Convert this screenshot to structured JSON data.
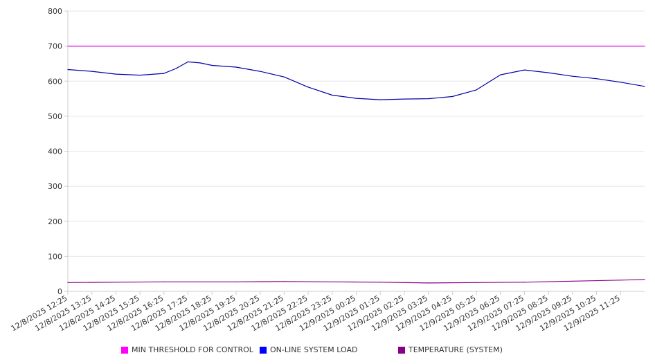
{
  "chart_data": {
    "type": "line",
    "title": "",
    "xlabel": "",
    "ylabel": "",
    "ylim": [
      0,
      800
    ],
    "yticks": [
      0,
      100,
      200,
      300,
      400,
      500,
      600,
      700,
      800
    ],
    "grid": true,
    "legend_position": "bottom",
    "x_start": "12/8/2025 12:25",
    "x_end": "12/9/2025 12:25",
    "x_tick_labels": [
      "12/8/2025 12:25",
      "12/8/2025 13:25",
      "12/8/2025 14:25",
      "12/8/2025 15:25",
      "12/8/2025 16:25",
      "12/8/2025 17:25",
      "12/8/2025 18:25",
      "12/8/2025 19:25",
      "12/8/2025 20:25",
      "12/8/2025 21:25",
      "12/8/2025 22:25",
      "12/8/2025 23:25",
      "12/9/2025 00:25",
      "12/9/2025 01:25",
      "12/9/2025 02:25",
      "12/9/2025 03:25",
      "12/9/2025 04:25",
      "12/9/2025 05:25",
      "12/9/2025 06:25",
      "12/9/2025 07:25",
      "12/9/2025 08:25",
      "12/9/2025 09:25",
      "12/9/2025 10:25",
      "12/9/2025 11:25"
    ],
    "series": [
      {
        "name": "MIN THRESHOLD FOR CONTROL",
        "color": "#dd00dd",
        "legend_color": "#ff00ff",
        "x": [
          "12/8/2025 12:25",
          "12/9/2025 12:25"
        ],
        "values": [
          700,
          700
        ]
      },
      {
        "name": "ON-LINE SYSTEM LOAD",
        "color": "#0000aa",
        "legend_color": "#0000ff",
        "x": [
          "12/8/2025 12:25",
          "12/8/2025 13:25",
          "12/8/2025 14:25",
          "12/8/2025 15:25",
          "12/8/2025 16:25",
          "12/8/2025 16:55",
          "12/8/2025 17:25",
          "12/8/2025 17:55",
          "12/8/2025 18:25",
          "12/8/2025 19:25",
          "12/8/2025 20:25",
          "12/8/2025 21:25",
          "12/8/2025 22:25",
          "12/8/2025 23:25",
          "12/9/2025 00:25",
          "12/9/2025 01:25",
          "12/9/2025 02:25",
          "12/9/2025 03:25",
          "12/9/2025 04:25",
          "12/9/2025 05:25",
          "12/9/2025 06:25",
          "12/9/2025 07:25",
          "12/9/2025 08:25",
          "12/9/2025 09:25",
          "12/9/2025 10:25",
          "12/9/2025 11:25",
          "12/9/2025 12:25"
        ],
        "values": [
          633,
          628,
          620,
          617,
          622,
          636,
          655,
          652,
          645,
          640,
          628,
          612,
          583,
          560,
          551,
          547,
          549,
          550,
          556,
          575,
          618,
          632,
          624,
          614,
          607,
          597,
          585
        ]
      },
      {
        "name": "TEMPERATURE (SYSTEM)",
        "color": "#880088",
        "legend_color": "#880088",
        "x": [
          "12/8/2025 12:25",
          "12/8/2025 14:25",
          "12/8/2025 16:25",
          "12/8/2025 19:25",
          "12/8/2025 21:25",
          "12/8/2025 23:25",
          "12/9/2025 01:25",
          "12/9/2025 03:25",
          "12/9/2025 05:25",
          "12/9/2025 07:25",
          "12/9/2025 09:25",
          "12/9/2025 11:25",
          "12/9/2025 12:25"
        ],
        "values": [
          25,
          26,
          27,
          27,
          28,
          27,
          26,
          24,
          25,
          26,
          29,
          32,
          34
        ]
      }
    ]
  }
}
